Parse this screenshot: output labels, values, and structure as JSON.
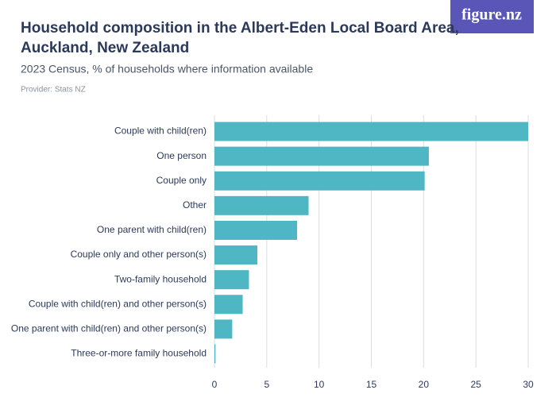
{
  "logo": "figure.nz",
  "chart_data": {
    "type": "hbar",
    "title": [
      "Household composition in the Albert-Eden Local Board Area,",
      "Auckland, New Zealand"
    ],
    "subtitle": "2023 Census, % of households where information available",
    "provider": "Provider: Stats NZ",
    "categories": [
      "Couple with child(ren)",
      "One person",
      "Couple only",
      "Other",
      "One parent with child(ren)",
      "Couple only and other person(s)",
      "Two-family household",
      "Couple with child(ren) and other person(s)",
      "One parent with child(ren) and other person(s)",
      "Three-or-more family household"
    ],
    "values": [
      30.0,
      20.5,
      20.1,
      9.0,
      7.9,
      4.1,
      3.3,
      2.7,
      1.7,
      0.1
    ],
    "color": "#4fb6c3",
    "xlim": [
      0,
      30
    ],
    "xticks": [
      0,
      5,
      10,
      15,
      20,
      25,
      30
    ],
    "grid": true
  }
}
